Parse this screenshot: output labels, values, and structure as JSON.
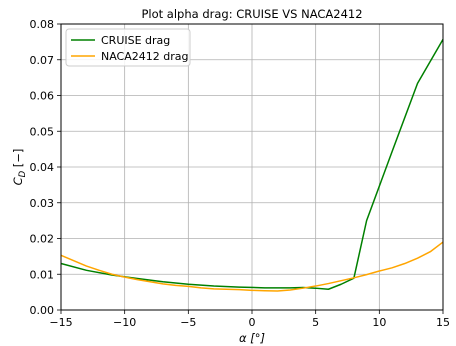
{
  "chart_data": {
    "type": "line",
    "title": "Plot alpha drag: CRUISE VS NACA2412",
    "xlabel": "α [°]",
    "ylabel": "C_D [−]",
    "xlim": [
      -15,
      15
    ],
    "ylim": [
      0,
      0.08
    ],
    "xticks": [
      -15,
      -10,
      -5,
      0,
      5,
      10,
      15
    ],
    "xtick_labels": [
      "−15",
      "−10",
      "−5",
      "0",
      "5",
      "10",
      "15"
    ],
    "yticks": [
      0.0,
      0.01,
      0.02,
      0.03,
      0.04,
      0.05,
      0.06,
      0.07,
      0.08
    ],
    "ytick_labels": [
      "0.00",
      "0.01",
      "0.02",
      "0.03",
      "0.04",
      "0.05",
      "0.06",
      "0.07",
      "0.08"
    ],
    "grid": true,
    "legend_position": "top-left",
    "series": [
      {
        "name": "CRUISE drag",
        "color": "#008000",
        "x": [
          -15,
          -13,
          -11,
          -9,
          -7,
          -5,
          -3,
          -1,
          1,
          2,
          3,
          4,
          5,
          6,
          7,
          8,
          9,
          11,
          13,
          15
        ],
        "y": [
          0.013,
          0.0111,
          0.0098,
          0.0088,
          0.0079,
          0.0072,
          0.0067,
          0.0064,
          0.0062,
          0.0062,
          0.0062,
          0.0063,
          0.0061,
          0.0058,
          0.0072,
          0.0089,
          0.025,
          0.0443,
          0.0634,
          0.0757
        ]
      },
      {
        "name": "NACA2412 drag",
        "color": "#FFA500",
        "x": [
          -15,
          -14,
          -13,
          -12,
          -11,
          -10,
          -9,
          -8,
          -7,
          -6,
          -5,
          -4,
          -3,
          -2,
          -1,
          0,
          1,
          2,
          3,
          4,
          5,
          6,
          7,
          8,
          9,
          10,
          11,
          12,
          13,
          14,
          15
        ],
        "y": [
          0.0153,
          0.0138,
          0.0123,
          0.0111,
          0.01,
          0.0092,
          0.0085,
          0.0079,
          0.0073,
          0.0069,
          0.0066,
          0.0062,
          0.0059,
          0.0058,
          0.0057,
          0.0055,
          0.0054,
          0.0053,
          0.0056,
          0.0061,
          0.0067,
          0.0074,
          0.0082,
          0.009,
          0.0099,
          0.0109,
          0.0118,
          0.013,
          0.0145,
          0.0163,
          0.019
        ]
      }
    ]
  }
}
